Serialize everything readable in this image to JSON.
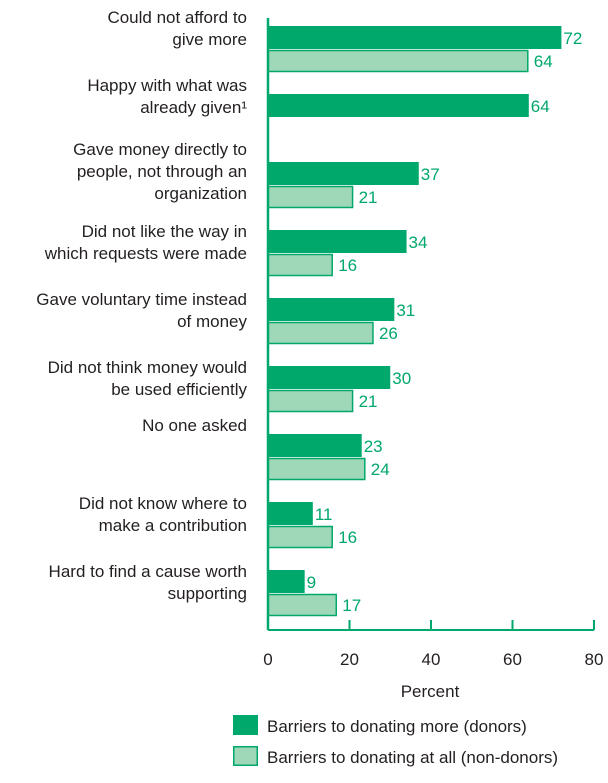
{
  "colors": {
    "donors": "#00a86b",
    "non_donors": "#9fd8b8",
    "non_donors_stroke": "#00a86b",
    "axis": "#00a86b",
    "value_text": "#00a86b"
  },
  "chart_data": {
    "type": "bar",
    "orientation": "horizontal",
    "title": "",
    "xlabel": "Percent",
    "ylabel": "",
    "xlim": [
      0,
      80
    ],
    "xticks": [
      0,
      20,
      40,
      60,
      80
    ],
    "grid": false,
    "legend_position": "bottom",
    "categories": [
      [
        "Could not afford to",
        "give more"
      ],
      [
        "Happy with what was",
        "already given¹"
      ],
      [
        "Gave money directly to",
        "people, not through an",
        "organization"
      ],
      [
        "Did not like the way in",
        "which requests were made"
      ],
      [
        "Gave voluntary time instead",
        "of money"
      ],
      [
        "Did not think money would",
        "be used efficiently"
      ],
      [
        "No one asked"
      ],
      [
        "Did not know where to",
        "make a contribution"
      ],
      [
        "Hard to find a cause worth",
        "supporting"
      ]
    ],
    "series": [
      {
        "name": "Barriers to donating more (donors)",
        "values": [
          72,
          64,
          37,
          34,
          31,
          30,
          23,
          11,
          9
        ]
      },
      {
        "name": "Barriers to donating at all (non-donors)",
        "values": [
          64,
          null,
          21,
          16,
          26,
          21,
          24,
          16,
          17
        ]
      }
    ]
  }
}
